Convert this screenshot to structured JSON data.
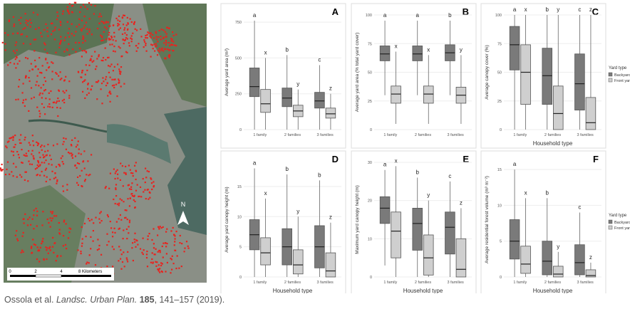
{
  "map": {
    "scale_labels": [
      "0",
      "2",
      "4",
      "8 Kilometers"
    ],
    "north": "N"
  },
  "citation": {
    "authors": "Ossola et al.",
    "journal": "Landsc. Urban Plan.",
    "volume": "185",
    "pages": ", 141–157 (2019)."
  },
  "legend": {
    "title": "Yard type",
    "entries": [
      "Backyard",
      "Front yard"
    ],
    "colors": [
      "#7a7a7a",
      "#cfcfcf"
    ]
  },
  "panels": [
    {
      "label": "A",
      "y_label": "Average yard area (m²)",
      "categories": [
        "1 family",
        "2 families",
        "3 families"
      ],
      "ylim": [
        0,
        800
      ],
      "yticks": [
        0,
        250,
        500,
        750
      ],
      "series": [
        {
          "name": "Backyard",
          "boxes": [
            {
              "min": 0,
              "q1": 230,
              "median": 300,
              "q3": 430,
              "max": 760,
              "letter": "a"
            },
            {
              "min": 0,
              "q1": 160,
              "median": 220,
              "q3": 290,
              "max": 520,
              "letter": "b"
            },
            {
              "min": 0,
              "q1": 150,
              "median": 200,
              "q3": 260,
              "max": 450,
              "letter": "c"
            }
          ]
        },
        {
          "name": "Front yard",
          "boxes": [
            {
              "min": 0,
              "q1": 120,
              "median": 180,
              "q3": 280,
              "max": 500,
              "letter": "x"
            },
            {
              "min": 0,
              "q1": 90,
              "median": 130,
              "q3": 170,
              "max": 280,
              "letter": "y"
            },
            {
              "min": 0,
              "q1": 80,
              "median": 110,
              "q3": 150,
              "max": 250,
              "letter": "z"
            }
          ]
        }
      ]
    },
    {
      "label": "B",
      "y_label": "Average yard area (% total yard cover)",
      "categories": [
        "1 family",
        "2 families",
        "3 families"
      ],
      "ylim": [
        0,
        100
      ],
      "yticks": [
        0,
        25,
        50,
        75,
        100
      ],
      "series": [
        {
          "name": "Backyard",
          "boxes": [
            {
              "min": 30,
              "q1": 60,
              "median": 66,
              "q3": 73,
              "max": 95,
              "letter": "a"
            },
            {
              "min": 30,
              "q1": 60,
              "median": 66,
              "q3": 73,
              "max": 95,
              "letter": "a"
            },
            {
              "min": 30,
              "q1": 60,
              "median": 67,
              "q3": 74,
              "max": 95,
              "letter": "b"
            }
          ]
        },
        {
          "name": "Front yard",
          "boxes": [
            {
              "min": 5,
              "q1": 23,
              "median": 31,
              "q3": 38,
              "max": 68,
              "letter": "x"
            },
            {
              "min": 5,
              "q1": 23,
              "median": 31,
              "q3": 38,
              "max": 65,
              "letter": "x"
            },
            {
              "min": 5,
              "q1": 23,
              "median": 30,
              "q3": 37,
              "max": 65,
              "letter": "y"
            }
          ]
        }
      ]
    },
    {
      "label": "C",
      "y_label": "Average canopy cover (%)",
      "x_label": "Household type",
      "categories": [
        "1 family",
        "2 families",
        "3 families"
      ],
      "ylim": [
        0,
        100
      ],
      "yticks": [
        0,
        25,
        50,
        75,
        100
      ],
      "series": [
        {
          "name": "Backyard",
          "boxes": [
            {
              "min": 0,
              "q1": 52,
              "median": 74,
              "q3": 90,
              "max": 100,
              "letter": "a"
            },
            {
              "min": 0,
              "q1": 22,
              "median": 47,
              "q3": 71,
              "max": 100,
              "letter": "b"
            },
            {
              "min": 0,
              "q1": 17,
              "median": 40,
              "q3": 66,
              "max": 100,
              "letter": "c"
            }
          ]
        },
        {
          "name": "Front yard",
          "boxes": [
            {
              "min": 0,
              "q1": 22,
              "median": 50,
              "q3": 74,
              "max": 100,
              "letter": "x"
            },
            {
              "min": 0,
              "q1": 0,
              "median": 14,
              "q3": 38,
              "max": 100,
              "letter": "y"
            },
            {
              "min": 0,
              "q1": 0,
              "median": 6,
              "q3": 28,
              "max": 100,
              "letter": "z"
            }
          ]
        }
      ]
    },
    {
      "label": "D",
      "y_label": "Average yard canopy height (m)",
      "x_label": "Household type",
      "categories": [
        "1 family",
        "2 families",
        "3 families"
      ],
      "ylim": [
        0,
        19
      ],
      "yticks": [
        0,
        5,
        10,
        15
      ],
      "series": [
        {
          "name": "Backyard",
          "boxes": [
            {
              "min": 0,
              "q1": 4.5,
              "median": 7,
              "q3": 9.5,
              "max": 18,
              "letter": "a"
            },
            {
              "min": 0,
              "q1": 2,
              "median": 5,
              "q3": 8,
              "max": 17,
              "letter": "b"
            },
            {
              "min": 0,
              "q1": 1.5,
              "median": 5,
              "q3": 8.5,
              "max": 16,
              "letter": "b"
            }
          ]
        },
        {
          "name": "Front yard",
          "boxes": [
            {
              "min": 0,
              "q1": 2,
              "median": 4,
              "q3": 6.5,
              "max": 13,
              "letter": "x"
            },
            {
              "min": 0,
              "q1": 0.5,
              "median": 2,
              "q3": 4.5,
              "max": 10,
              "letter": "y"
            },
            {
              "min": 0,
              "q1": 0,
              "median": 1,
              "q3": 4,
              "max": 9,
              "letter": "z"
            }
          ]
        }
      ]
    },
    {
      "label": "E",
      "y_label": "Maximum yard canopy height (m)",
      "x_label": "Household type",
      "categories": [
        "1 family",
        "2 families",
        "3 families"
      ],
      "ylim": [
        0,
        30
      ],
      "yticks": [
        0,
        10,
        20,
        30
      ],
      "series": [
        {
          "name": "Backyard",
          "boxes": [
            {
              "min": 3,
              "q1": 14,
              "median": 18,
              "q3": 21,
              "max": 28,
              "letter": "a"
            },
            {
              "min": 0,
              "q1": 7,
              "median": 14,
              "q3": 18,
              "max": 26,
              "letter": "b"
            },
            {
              "min": 0,
              "q1": 6,
              "median": 13,
              "q3": 17,
              "max": 25,
              "letter": "c"
            }
          ]
        },
        {
          "name": "Front yard",
          "boxes": [
            {
              "min": 0,
              "q1": 5,
              "median": 12,
              "q3": 17,
              "max": 29,
              "letter": "x"
            },
            {
              "min": 0,
              "q1": 0.5,
              "median": 5,
              "q3": 11,
              "max": 20,
              "letter": "y"
            },
            {
              "min": 0,
              "q1": 0,
              "median": 2,
              "q3": 10,
              "max": 18,
              "letter": "z"
            }
          ]
        }
      ]
    },
    {
      "label": "F",
      "y_label": "Average residential forest volume (m³ m⁻²)",
      "x_label": "Household type",
      "categories": [
        "1 family",
        "2 families",
        "3 families"
      ],
      "ylim": [
        0,
        16
      ],
      "yticks": [
        0,
        5,
        10,
        15
      ],
      "series": [
        {
          "name": "Backyard",
          "boxes": [
            {
              "min": 0,
              "q1": 2.5,
              "median": 5,
              "q3": 8,
              "max": 15,
              "letter": "a"
            },
            {
              "min": 0,
              "q1": 0.3,
              "median": 2.2,
              "q3": 5,
              "max": 11,
              "letter": "b"
            },
            {
              "min": 0,
              "q1": 0.3,
              "median": 2,
              "q3": 4.5,
              "max": 9,
              "letter": "c"
            }
          ]
        },
        {
          "name": "Front yard",
          "boxes": [
            {
              "min": 0,
              "q1": 0.5,
              "median": 1.8,
              "q3": 4.3,
              "max": 11,
              "letter": "x"
            },
            {
              "min": 0,
              "q1": 0,
              "median": 0.4,
              "q3": 1.5,
              "max": 3.5,
              "letter": "y"
            },
            {
              "min": 0,
              "q1": 0,
              "median": 0.2,
              "q3": 1,
              "max": 2,
              "letter": "z"
            }
          ]
        }
      ]
    }
  ]
}
